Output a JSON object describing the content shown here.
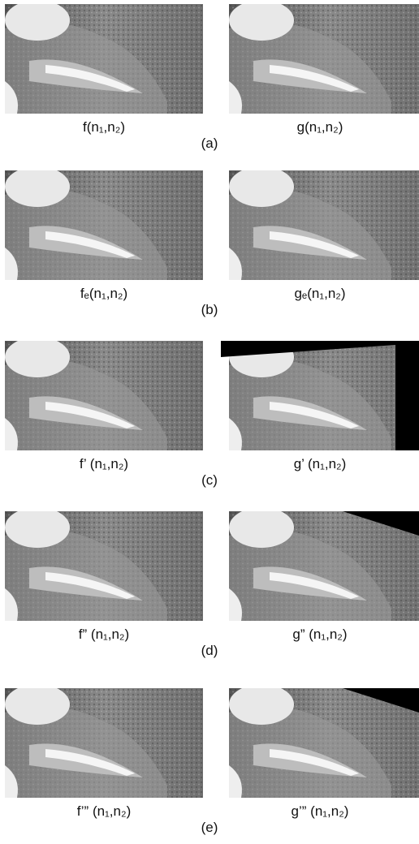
{
  "rows": [
    {
      "left": "f(n₁,n₂)",
      "right": "g(n₁,n₂)",
      "letter": "(a)"
    },
    {
      "left": "fₑ(n₁,n₂)",
      "right": "gₑ(n₁,n₂)",
      "letter": "(b)"
    },
    {
      "left": "f’ (n₁,n₂)",
      "right": "g’ (n₁,n₂)",
      "letter": "(c)"
    },
    {
      "left": "f” (n₁,n₂)",
      "right": "g” (n₁,n₂)",
      "letter": "(d)"
    },
    {
      "left": "f’” (n₁,n₂)",
      "right": "g’” (n₁,n₂)",
      "letter": "(e)"
    }
  ]
}
